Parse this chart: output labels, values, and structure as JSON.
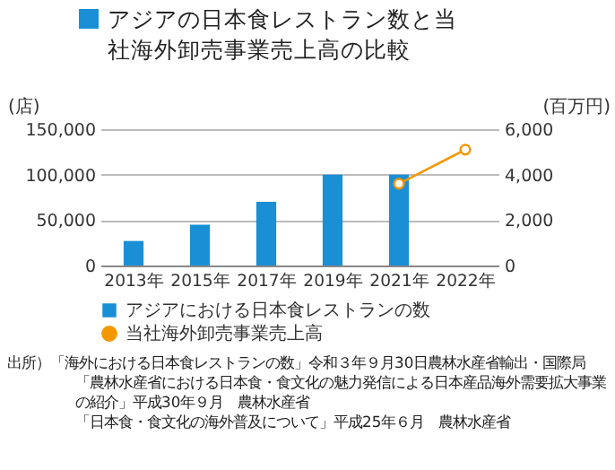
{
  "chart_data": {
    "type": "bar",
    "title": "アジアの日本食レストラン数と当社海外卸売事業売上高の比較",
    "categories": [
      "2013年",
      "2015年",
      "2017年",
      "2019年",
      "2021年",
      "2022年"
    ],
    "series": [
      {
        "name": "アジアにおける日本食レストランの数",
        "color": "#1a8fd6",
        "values": [
          27000,
          45000,
          70000,
          100000,
          100000,
          null
        ]
      },
      {
        "name": "当社海外卸売事業売上高",
        "type": "line",
        "axis": "y2",
        "color": "#f39800",
        "values": [
          null,
          null,
          null,
          null,
          3600,
          5100
        ]
      }
    ],
    "ylabel": "(店)",
    "y2label": "(百万円)",
    "ylim": [
      0,
      150000
    ],
    "yticks": [
      0,
      {
        "value": 50000,
        "label": "50,000"
      },
      {
        "value": 100000,
        "label": "100,000"
      },
      {
        "value": 150000,
        "label": "150,000"
      }
    ],
    "y2lim": [
      0,
      6000
    ],
    "y2ticks": [
      0,
      {
        "value": 2000,
        "label": "2,000"
      },
      {
        "value": 4000,
        "label": "4,000"
      },
      {
        "value": 6000,
        "label": "6,000"
      }
    ],
    "grid": "y",
    "legend": "bottom",
    "marker": "circle",
    "annotations": [
      "出所）「海外における日本食レストランの数」令和３年９月30日農林水産省輸出・国際局",
      "「農林水産省における日本食・食文化の魅力発信による日本産品海外需要拡大事業の紹介」平成30年９月　農林水産省",
      "「日本食・食文化の海外普及について」平成25年６月　農林水産省"
    ]
  }
}
